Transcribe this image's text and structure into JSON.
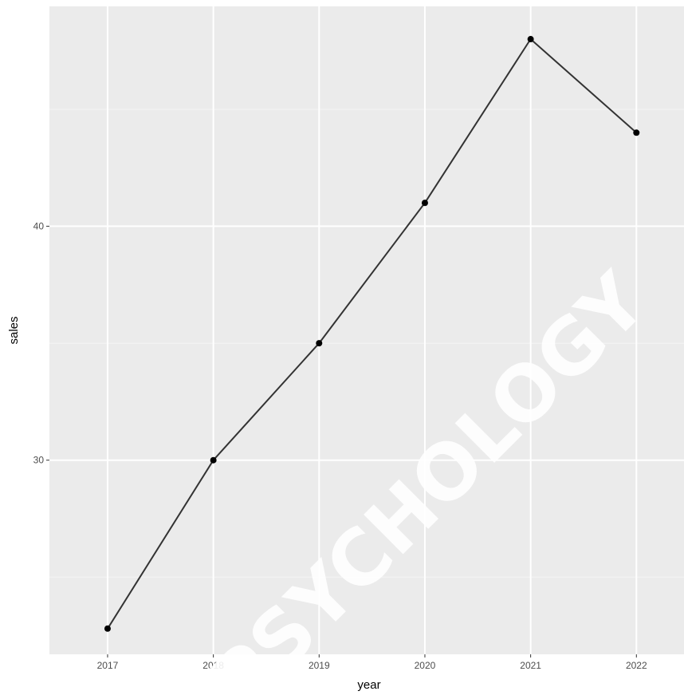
{
  "chart_data": {
    "type": "line",
    "xlabel": "year",
    "ylabel": "sales",
    "x": [
      2017,
      2018,
      2019,
      2020,
      2021,
      2022
    ],
    "y": [
      22.8,
      30,
      35,
      41,
      48,
      44
    ],
    "xlim": [
      2016.45,
      2022.45
    ],
    "ylim": [
      21.7,
      49.4
    ],
    "x_ticks": [
      "2017",
      "2018",
      "2019",
      "2020",
      "2021",
      "2022"
    ],
    "y_ticks": [
      30,
      40
    ],
    "grid": true,
    "colors": {
      "panel_background": "#ebebeb",
      "grid_major": "#ffffff",
      "grid_minor": "#f5f5f5",
      "line": "#333333",
      "points": "#000000"
    }
  },
  "watermark": {
    "text": "PSYCHOLOGY"
  }
}
